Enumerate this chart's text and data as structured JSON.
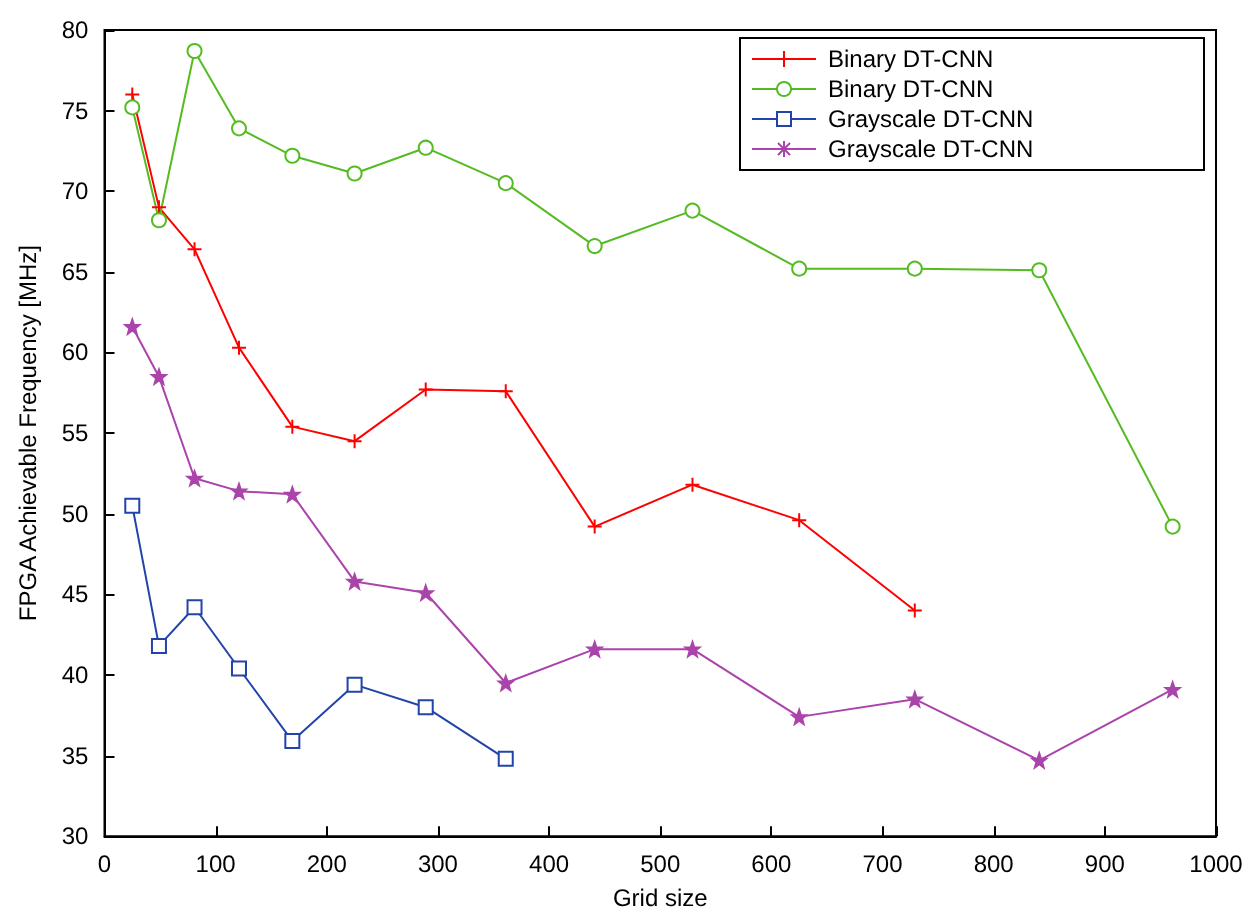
{
  "chart_data": {
    "type": "line",
    "xlabel": "Grid size",
    "ylabel": "FPGA Achievable Frequency [MHz]",
    "xlim": [
      0,
      1000
    ],
    "xticks": [
      0,
      100,
      200,
      300,
      400,
      500,
      600,
      700,
      800,
      900,
      1000
    ],
    "ylim": [
      30,
      80
    ],
    "yticks": [
      30,
      35,
      40,
      45,
      50,
      55,
      60,
      65,
      70,
      75,
      80
    ],
    "grid": false,
    "legend": "top right",
    "line_style": "solid",
    "series": [
      {
        "name": "Binary DT-CNN",
        "color": "#ff0000",
        "marker": "cross",
        "x": [
          25,
          49,
          81,
          121,
          169,
          225,
          289,
          361,
          441,
          529,
          625,
          729
        ],
        "values": [
          76,
          69,
          66.4,
          60.3,
          55.4,
          54.5,
          57.7,
          57.6,
          49.2,
          51.8,
          49.6,
          44
        ]
      },
      {
        "name": "Binary DT-CNN",
        "color": "#55bb22",
        "marker": "circle",
        "x": [
          25,
          49,
          81,
          121,
          169,
          225,
          289,
          361,
          441,
          529,
          625,
          729,
          841,
          961
        ],
        "values": [
          75.2,
          68.2,
          78.7,
          73.9,
          72.2,
          71.1,
          72.7,
          70.5,
          66.6,
          68.8,
          65.2,
          65.2,
          65.1,
          49.2
        ]
      },
      {
        "name": "Grayscale DT-CNN",
        "color": "#2244aa",
        "marker": "square",
        "x": [
          25,
          49,
          81,
          121,
          169,
          225,
          289,
          361
        ],
        "values": [
          50.5,
          41.8,
          44.2,
          40.4,
          35.9,
          39.4,
          38,
          34.8
        ]
      },
      {
        "name": "Grayscale DT-CNN",
        "color": "#aa44aa",
        "marker": "star",
        "x": [
          25,
          49,
          81,
          121,
          169,
          225,
          289,
          361,
          441,
          529,
          625,
          729,
          841,
          961
        ],
        "values": [
          61.6,
          58.5,
          52.2,
          51.4,
          51.2,
          45.8,
          45.1,
          39.5,
          41.6,
          41.6,
          37.4,
          38.5,
          34.7,
          39.1
        ]
      }
    ]
  }
}
